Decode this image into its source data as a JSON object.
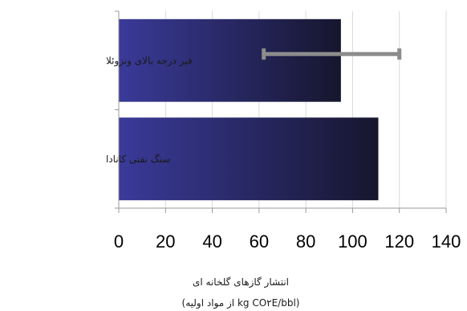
{
  "chart_data": {
    "type": "bar",
    "orientation": "horizontal",
    "categories": [
      "قیر درجه بالای ونزوئلا",
      "سنگ نفتی کانادا"
    ],
    "values": [
      95,
      111
    ],
    "error_bars": [
      {
        "category": "قیر درجه بالای ونزوئلا",
        "low": 62,
        "high": 120
      }
    ],
    "xlabel_lines": [
      "انتشار گازهای گلخانه ای",
      "(kg CO۲E/bbl از مواد اولیه)"
    ],
    "xlim": [
      0,
      140
    ],
    "xticks": [
      0,
      20,
      40,
      60,
      80,
      100,
      120,
      140
    ],
    "grid": "vertical",
    "colors": {
      "bar_start": "#3a3a9a",
      "bar_end": "#16162e",
      "error_bar": "#8c8c8c",
      "grid": "#d9d9d9",
      "axis": "#9a9a9a"
    }
  }
}
